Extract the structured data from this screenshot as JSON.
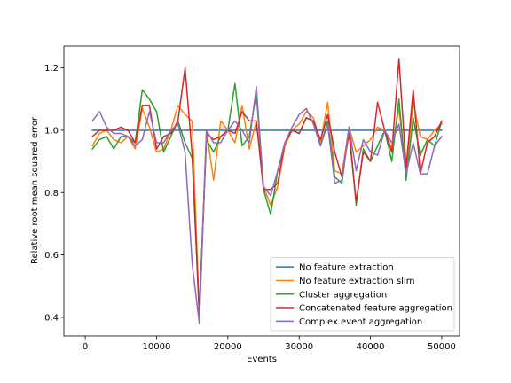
{
  "chart_data": {
    "type": "line",
    "xlabel": "Events",
    "ylabel": "Relative root mean squared error",
    "xlim": [
      -3000,
      52500
    ],
    "ylim": [
      0.34,
      1.27
    ],
    "xticks": [
      0,
      10000,
      20000,
      30000,
      40000,
      50000
    ],
    "xtick_labels": [
      "0",
      "10000",
      "20000",
      "30000",
      "40000",
      "50000"
    ],
    "yticks": [
      0.4,
      0.6,
      0.8,
      1.0,
      1.2
    ],
    "ytick_labels": [
      "0.4",
      "0.6",
      "0.8",
      "1.0",
      "1.2"
    ],
    "grid": false,
    "legend_position": "lower-right",
    "series": [
      {
        "name": "No feature extraction",
        "color": "#1f77b4",
        "x": [
          1000,
          50000
        ],
        "y": [
          1.0,
          1.0
        ]
      },
      {
        "name": "No feature extraction slim",
        "color": "#ff7f0e",
        "x": [
          1000,
          2000,
          3000,
          4000,
          5000,
          6000,
          7000,
          8000,
          9000,
          10000,
          11000,
          12000,
          13000,
          14000,
          15000,
          16000,
          17000,
          18000,
          19000,
          20000,
          21000,
          22000,
          23000,
          24000,
          25000,
          26000,
          27000,
          28000,
          29000,
          30000,
          31000,
          32000,
          33000,
          34000,
          35000,
          36000,
          37000,
          38000,
          39000,
          40000,
          41000,
          42000,
          43000,
          44000,
          45000,
          46000,
          47000,
          48000,
          49000,
          50000
        ],
        "y": [
          0.95,
          0.99,
          1.0,
          0.97,
          0.96,
          0.98,
          0.94,
          1.07,
          1.01,
          0.93,
          0.94,
          1.0,
          1.08,
          1.05,
          1.03,
          0.41,
          1.0,
          0.84,
          1.03,
          1.0,
          0.96,
          1.08,
          0.94,
          1.03,
          0.82,
          0.76,
          0.82,
          0.95,
          1.0,
          1.02,
          1.06,
          1.04,
          0.96,
          1.09,
          0.87,
          0.86,
          1.01,
          0.93,
          0.95,
          0.97,
          1.01,
          1.0,
          0.94,
          1.07,
          0.87,
          1.09,
          0.98,
          0.97,
          1.0,
          1.02
        ]
      },
      {
        "name": "Cluster aggregation",
        "color": "#2ca02c",
        "x": [
          1000,
          2000,
          3000,
          4000,
          5000,
          6000,
          7000,
          8000,
          9000,
          10000,
          11000,
          12000,
          13000,
          14000,
          15000,
          16000,
          17000,
          18000,
          19000,
          20000,
          21000,
          22000,
          23000,
          24000,
          25000,
          26000,
          27000,
          28000,
          29000,
          30000,
          31000,
          32000,
          33000,
          34000,
          35000,
          36000,
          37000,
          38000,
          39000,
          40000,
          41000,
          42000,
          43000,
          44000,
          45000,
          46000,
          47000,
          48000,
          49000,
          50000
        ],
        "y": [
          0.94,
          0.97,
          0.98,
          0.94,
          0.98,
          0.98,
          0.96,
          1.13,
          1.1,
          1.06,
          0.93,
          0.98,
          1.03,
          0.96,
          0.91,
          0.42,
          0.97,
          0.93,
          0.98,
          1.0,
          1.15,
          0.95,
          0.98,
          1.12,
          0.81,
          0.73,
          0.87,
          0.96,
          1.0,
          0.99,
          1.04,
          1.03,
          0.95,
          1.03,
          0.85,
          0.83,
          1.01,
          0.76,
          0.94,
          0.9,
          0.95,
          1.0,
          0.9,
          1.1,
          0.84,
          1.04,
          0.92,
          0.97,
          0.95,
          1.03
        ]
      },
      {
        "name": "Concatenated feature aggregation",
        "color": "#d62728",
        "x": [
          1000,
          2000,
          3000,
          4000,
          5000,
          6000,
          7000,
          8000,
          9000,
          10000,
          11000,
          12000,
          13000,
          14000,
          15000,
          16000,
          17000,
          18000,
          19000,
          20000,
          21000,
          22000,
          23000,
          24000,
          25000,
          26000,
          27000,
          28000,
          29000,
          30000,
          31000,
          32000,
          33000,
          34000,
          35000,
          36000,
          37000,
          38000,
          39000,
          40000,
          41000,
          42000,
          43000,
          44000,
          45000,
          46000,
          47000,
          48000,
          49000,
          50000
        ],
        "y": [
          0.98,
          1.0,
          1.0,
          1.0,
          1.01,
          1.0,
          0.96,
          1.08,
          1.08,
          0.94,
          0.98,
          0.99,
          1.03,
          1.2,
          0.92,
          0.4,
          0.99,
          0.97,
          0.98,
          1.0,
          0.99,
          1.06,
          1.03,
          1.03,
          0.81,
          0.81,
          0.83,
          0.96,
          1.0,
          0.99,
          1.04,
          1.03,
          0.97,
          1.05,
          0.93,
          0.85,
          0.99,
          0.77,
          0.93,
          0.9,
          1.09,
          1.0,
          0.93,
          1.23,
          0.88,
          1.13,
          0.86,
          0.96,
          0.98,
          1.03
        ]
      },
      {
        "name": "Complex event aggregation",
        "color": "#9467bd",
        "x": [
          1000,
          2000,
          3000,
          4000,
          5000,
          6000,
          7000,
          8000,
          9000,
          10000,
          11000,
          12000,
          13000,
          14000,
          15000,
          16000,
          17000,
          18000,
          19000,
          20000,
          21000,
          22000,
          23000,
          24000,
          25000,
          26000,
          27000,
          28000,
          29000,
          30000,
          31000,
          32000,
          33000,
          34000,
          35000,
          36000,
          37000,
          38000,
          39000,
          40000,
          41000,
          42000,
          43000,
          44000,
          45000,
          46000,
          47000,
          48000,
          49000,
          50000
        ],
        "y": [
          1.03,
          1.06,
          1.01,
          0.99,
          0.99,
          0.98,
          0.95,
          0.97,
          1.06,
          0.96,
          0.96,
          1.0,
          1.02,
          0.93,
          0.57,
          0.38,
          1.0,
          0.96,
          0.96,
          1.0,
          1.03,
          1.0,
          0.96,
          1.14,
          0.82,
          0.79,
          0.87,
          0.96,
          1.01,
          1.05,
          1.07,
          1.02,
          0.95,
          1.02,
          0.83,
          0.84,
          1.01,
          0.87,
          0.97,
          0.93,
          0.92,
          1.0,
          0.96,
          1.02,
          0.86,
          0.96,
          0.86,
          0.86,
          0.95,
          0.98
        ]
      }
    ]
  }
}
